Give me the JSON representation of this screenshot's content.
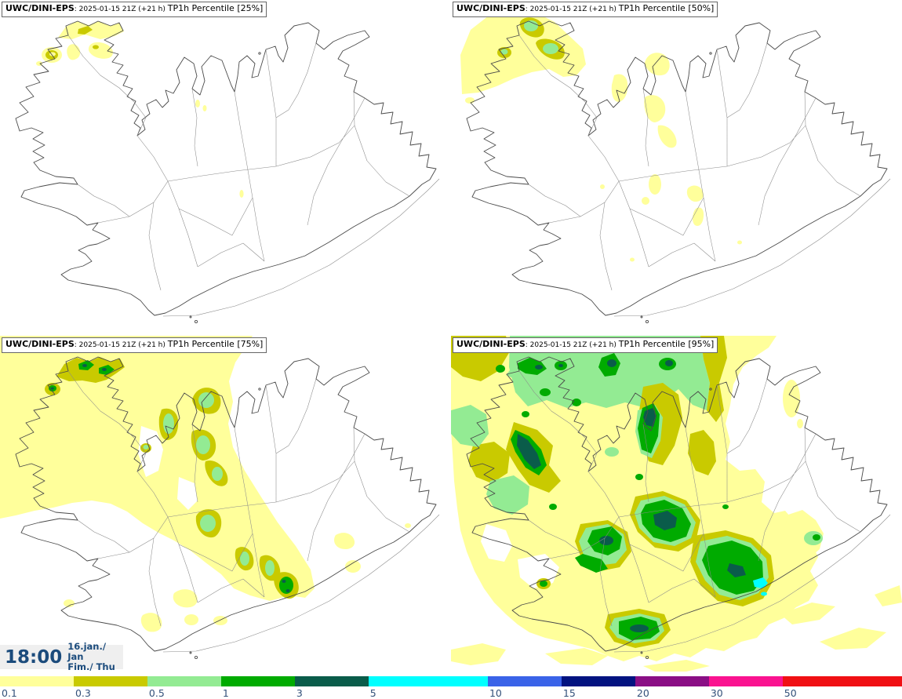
{
  "panels": [
    {
      "model": "UWC/DINI-EPS",
      "meta": ": 2025-01-15 21Z (+21 h) ",
      "label": "TP1h Percentile [25%]"
    },
    {
      "model": "UWC/DINI-EPS",
      "meta": ": 2025-01-15 21Z (+21 h) ",
      "label": "TP1h Percentile [50%]"
    },
    {
      "model": "UWC/DINI-EPS",
      "meta": ": 2025-01-15 21Z (+21 h) ",
      "label": "TP1h Percentile [75%]"
    },
    {
      "model": "UWC/DINI-EPS",
      "meta": ": 2025-01-15 21Z (+21 h) ",
      "label": "TP1h Percentile [95%]"
    }
  ],
  "time_box": {
    "time": "18:00",
    "date": "16.jan./ Jan",
    "day": "Fim./ Thu"
  },
  "colorbar": {
    "unit_values": [
      "0.1",
      "0.3",
      "0.5",
      "1",
      "3",
      "5",
      "10",
      "15",
      "20",
      "30",
      "50"
    ],
    "segments": [
      {
        "value": "0.1",
        "color": "#FFFF9B",
        "wide": false
      },
      {
        "value": "0.3",
        "color": "#C9CA00",
        "wide": false
      },
      {
        "value": "0.5",
        "color": "#93EB93",
        "wide": false
      },
      {
        "value": "1",
        "color": "#00AB00",
        "wide": false
      },
      {
        "value": "3",
        "color": "#0A5C4A",
        "wide": false
      },
      {
        "value": "5",
        "color": "#00FFFF",
        "wide": true
      },
      {
        "value": "10",
        "color": "#3A63E8",
        "wide": false
      },
      {
        "value": "15",
        "color": "#021380",
        "wide": false
      },
      {
        "value": "20",
        "color": "#8A0F85",
        "wide": false
      },
      {
        "value": "30",
        "color": "#FA1390",
        "wide": false
      },
      {
        "value": "50",
        "color": "#F01014",
        "wide": true
      }
    ]
  },
  "palette": {
    "c-01": "#FFFF9B",
    "c-03": "#C9CA00",
    "c-05": "#93EB93",
    "c-1": "#00AB00",
    "c-3": "#0A5C4A",
    "c-5": "#00FFFF",
    "coast": "#4a4a4a",
    "inner": "#8a8a8a",
    "tick-text": "#33517A",
    "time-text": "#1B4B7C",
    "time-bg": "#EFEFEF",
    "title-border": "#666666"
  }
}
